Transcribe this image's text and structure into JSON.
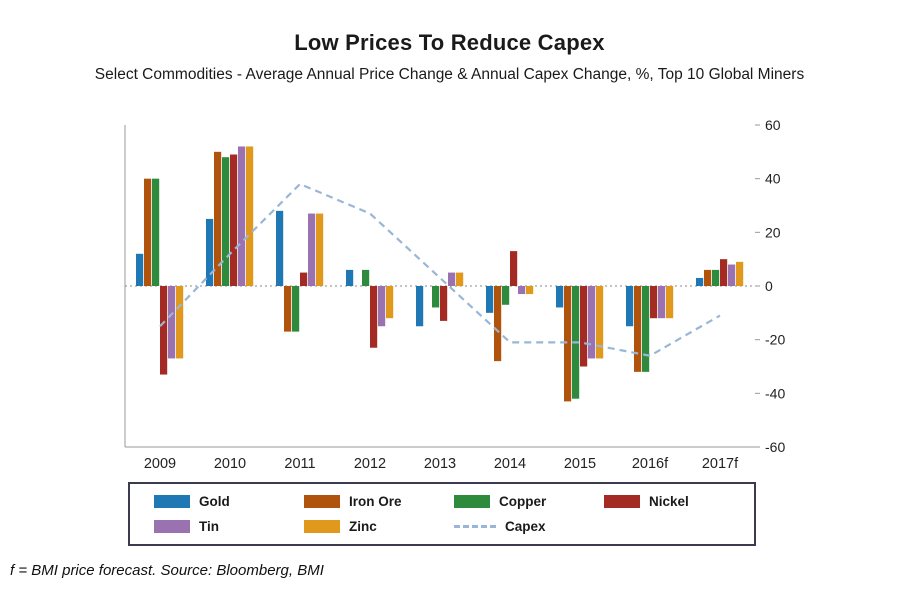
{
  "header": {
    "title": "Low Prices To Reduce Capex",
    "subtitle": "Select Commodities - Average Annual Price Change & Annual Capex Change, %, Top 10 Global Miners"
  },
  "footer": {
    "note": "f = BMI price forecast. Source: Bloomberg, BMI"
  },
  "chart_data": {
    "type": "bar",
    "title": "Low Prices To Reduce Capex",
    "categories": [
      "2009",
      "2010",
      "2011",
      "2012",
      "2013",
      "2014",
      "2015",
      "2016f",
      "2017f"
    ],
    "series": [
      {
        "name": "Gold",
        "color": "#1f77b4",
        "values": [
          12,
          25,
          28,
          6,
          -15,
          -10,
          -8,
          -15,
          3
        ]
      },
      {
        "name": "Iron Ore",
        "color": "#b0540d",
        "values": [
          40,
          50,
          -17,
          0,
          0,
          -28,
          -43,
          -32,
          6
        ]
      },
      {
        "name": "Copper",
        "color": "#2e8b3d",
        "values": [
          40,
          48,
          -17,
          6,
          -8,
          -7,
          -42,
          -32,
          6
        ]
      },
      {
        "name": "Nickel",
        "color": "#a42a24",
        "values": [
          -33,
          49,
          5,
          -23,
          -13,
          13,
          -30,
          -12,
          10
        ]
      },
      {
        "name": "Tin",
        "color": "#9b72b0",
        "values": [
          -27,
          52,
          27,
          -15,
          5,
          -3,
          -27,
          -12,
          8
        ]
      },
      {
        "name": "Zinc",
        "color": "#e0991c",
        "values": [
          -27,
          52,
          27,
          -12,
          5,
          -3,
          -27,
          -12,
          9
        ]
      }
    ],
    "line_series": {
      "name": "Capex",
      "color": "#9ab6d6",
      "dash": "7,5",
      "values": [
        -15,
        12,
        38,
        27,
        3,
        -21,
        -21,
        -26,
        -11
      ]
    },
    "ylim": [
      -60,
      60
    ],
    "yticks": [
      60,
      40,
      20,
      0,
      -20,
      -40,
      -60
    ],
    "ylabel": "",
    "xlabel": "",
    "grid": false,
    "legend_position": "bottom-box",
    "zero_line": "dotted"
  }
}
